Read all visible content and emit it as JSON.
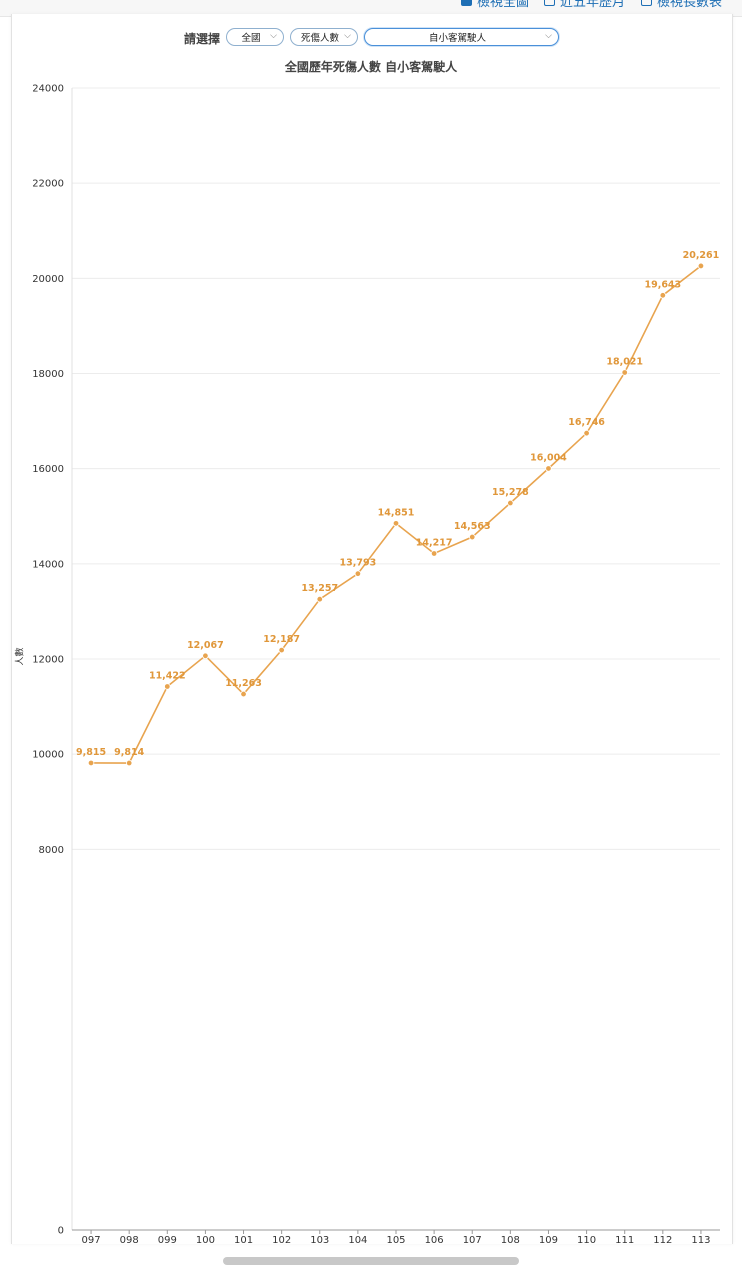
{
  "top_links": [
    {
      "label": "檢視全圖",
      "icon": "checkbox-icon"
    },
    {
      "label": "近五年歷月",
      "icon": "calendar-icon"
    },
    {
      "label": "檢視長數表",
      "icon": "table-icon"
    }
  ],
  "filter": {
    "label": "請選擇",
    "region": "全國",
    "metric": "死傷人數",
    "category": "自小客駕駛人"
  },
  "colors": {
    "line": "#e8a44f",
    "label": "#e0973a",
    "grid": "#ececec"
  },
  "chart_data": {
    "type": "line",
    "title": "全國歷年死傷人數 自小客駕駛人",
    "xlabel": "",
    "ylabel": "人數",
    "categories": [
      "097",
      "098",
      "099",
      "100",
      "101",
      "102",
      "103",
      "104",
      "105",
      "106",
      "107",
      "108",
      "109",
      "110",
      "111",
      "112",
      "113"
    ],
    "series": [
      {
        "values": [
          9815,
          9814,
          11422,
          12067,
          11263,
          12187,
          13257,
          13793,
          14851,
          14217,
          14563,
          15278,
          16004,
          16746,
          18021,
          19643,
          20261
        ],
        "labels": [
          "9,815",
          "9,814",
          "11,422",
          "12,067",
          "11,263",
          "12,187",
          "13,257",
          "13,793",
          "14,851",
          "14,217",
          "14,563",
          "15,278",
          "16,004",
          "16,746",
          "18,021",
          "19,643",
          "20,261"
        ]
      }
    ],
    "ylim": [
      0,
      24000
    ],
    "yticks": [
      0,
      8000,
      10000,
      12000,
      14000,
      16000,
      18000,
      20000,
      22000,
      24000
    ],
    "grid": true,
    "legend": "none"
  }
}
